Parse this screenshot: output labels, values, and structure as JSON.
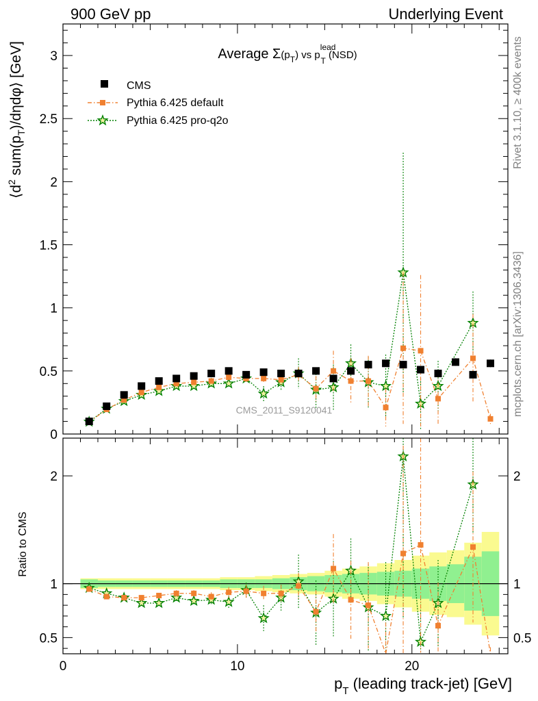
{
  "header": {
    "left": "900 GeV pp",
    "right": "Underlying Event"
  },
  "title": {
    "prefix": "Average ",
    "sigma": "Σ",
    "p": "(p",
    "psub": "T",
    "close": ")",
    "vs": " vs p",
    "lead_sup": "lead",
    "lead_sub": "T",
    "suffix": " (NSD)"
  },
  "side": {
    "rivet": "Rivet 3.1.10, ≥ 400k events",
    "mcplots": "mcplots.cern.ch [arXiv:1306.3436]"
  },
  "watermark": "CMS_2011_S9120041",
  "ylabel_main": {
    "a": "⟨d",
    "sup": "2",
    "b": " sum(p",
    "sub": "T",
    "c": ")/dηdφ⟩ [GeV]"
  },
  "ylabel_ratio": "Ratio to CMS",
  "xlabel": {
    "p": "p",
    "sub": "T",
    "rest": " (leading track-jet) [GeV]"
  },
  "colors": {
    "cms": "#000000",
    "pythia_default": "#f08030",
    "pythia_proq2o": "#008000",
    "band_inner": "#90f090",
    "band_outer": "#fafa90"
  },
  "chart_data": [
    {
      "type": "scatter",
      "panel": "main",
      "xlim": [
        0,
        25.5
      ],
      "ylim": [
        0,
        3.25
      ],
      "yticks": [
        0,
        0.5,
        1,
        1.5,
        2,
        2.5,
        3
      ],
      "yticklabels": [
        "0",
        "0.5",
        "1",
        "1.5",
        "2",
        "2.5",
        "3"
      ],
      "legend_position": "top-left",
      "series": [
        {
          "name": "CMS",
          "style": "square",
          "x": [
            1.5,
            2.5,
            3.5,
            4.5,
            5.5,
            6.5,
            7.5,
            8.5,
            9.5,
            10.5,
            11.5,
            12.5,
            13.5,
            14.5,
            15.5,
            16.5,
            17.5,
            18.5,
            19.5,
            20.5,
            21.5,
            22.5,
            23.5,
            24.5
          ],
          "y": [
            0.1,
            0.22,
            0.31,
            0.38,
            0.42,
            0.44,
            0.46,
            0.48,
            0.5,
            0.47,
            0.49,
            0.48,
            0.48,
            0.5,
            0.44,
            0.5,
            0.55,
            0.56,
            0.55,
            0.51,
            0.48,
            0.57,
            0.47,
            0.56
          ],
          "err": [
            0.004,
            0.006,
            0.008,
            0.01,
            0.01,
            0.01,
            0.01,
            0.01,
            0.012,
            0.012,
            0.012,
            0.013,
            0.014,
            0.015,
            0.016,
            0.02,
            0.025,
            0.025,
            0.03,
            0.03,
            0.03,
            0.03,
            0.03,
            0.03
          ]
        },
        {
          "name": "Pythia 6.425 default",
          "style": "dashdot-orange-square",
          "x": [
            1.5,
            2.5,
            3.5,
            4.5,
            5.5,
            6.5,
            7.5,
            8.5,
            9.5,
            10.5,
            11.5,
            12.5,
            13.5,
            14.5,
            15.5,
            16.5,
            17.5,
            18.5,
            19.5,
            20.5,
            21.5,
            23.5,
            24.5
          ],
          "y": [
            0.095,
            0.195,
            0.27,
            0.33,
            0.37,
            0.4,
            0.41,
            0.42,
            0.45,
            0.44,
            0.44,
            0.43,
            0.47,
            0.36,
            0.5,
            0.42,
            0.42,
            0.21,
            0.68,
            0.66,
            0.28,
            0.6,
            0.12
          ],
          "err": [
            0.004,
            0.006,
            0.008,
            0.01,
            0.012,
            0.015,
            0.02,
            0.02,
            0.025,
            0.03,
            0.03,
            0.04,
            0.06,
            0.1,
            0.16,
            0.18,
            0.2,
            0.15,
            0.6,
            0.6,
            0.2,
            0.35,
            0.04
          ]
        },
        {
          "name": "Pythia 6.425 pro-q2o",
          "style": "dotted-green-star",
          "x": [
            1.5,
            2.5,
            3.5,
            4.5,
            5.5,
            6.5,
            7.5,
            8.5,
            9.5,
            10.5,
            11.5,
            12.5,
            13.5,
            14.5,
            15.5,
            16.5,
            17.5,
            18.5,
            19.5,
            20.5,
            21.5,
            23.5
          ],
          "y": [
            0.097,
            0.2,
            0.26,
            0.31,
            0.34,
            0.38,
            0.38,
            0.4,
            0.4,
            0.44,
            0.32,
            0.41,
            0.48,
            0.35,
            0.37,
            0.56,
            0.41,
            0.38,
            1.28,
            0.24,
            0.38,
            0.88
          ],
          "err": [
            0.004,
            0.006,
            0.008,
            0.01,
            0.012,
            0.015,
            0.02,
            0.025,
            0.03,
            0.03,
            0.06,
            0.06,
            0.12,
            0.15,
            0.18,
            0.15,
            0.2,
            0.25,
            0.95,
            0.2,
            0.2,
            0.25
          ]
        }
      ]
    },
    {
      "type": "scatter",
      "panel": "ratio",
      "xlim": [
        0,
        25.5
      ],
      "ylim": [
        0.35,
        2.35
      ],
      "yticks": [
        0.5,
        1,
        2
      ],
      "yticklabels": [
        "0.5",
        "1",
        "2"
      ],
      "xticks": [
        0,
        10,
        20
      ],
      "xticklabels": [
        "0",
        "10",
        "20"
      ],
      "band_edges": [
        1,
        2,
        3,
        4,
        5,
        6,
        7,
        8,
        9,
        10,
        11,
        12,
        13,
        14,
        15,
        16,
        17,
        18,
        19,
        20,
        21,
        22,
        23,
        24,
        25
      ],
      "band_inner": [
        0.04,
        0.03,
        0.03,
        0.03,
        0.03,
        0.03,
        0.03,
        0.03,
        0.04,
        0.04,
        0.04,
        0.05,
        0.06,
        0.07,
        0.08,
        0.09,
        0.1,
        0.11,
        0.12,
        0.14,
        0.16,
        0.18,
        0.25,
        0.3
      ],
      "band_outer": [
        0.05,
        0.05,
        0.05,
        0.05,
        0.05,
        0.05,
        0.05,
        0.05,
        0.06,
        0.06,
        0.07,
        0.08,
        0.09,
        0.1,
        0.12,
        0.14,
        0.16,
        0.19,
        0.22,
        0.26,
        0.29,
        0.31,
        0.38,
        0.48
      ],
      "series": [
        {
          "name": "Pythia 6.425 default",
          "x": [
            1.5,
            2.5,
            3.5,
            4.5,
            5.5,
            6.5,
            7.5,
            8.5,
            9.5,
            10.5,
            11.5,
            12.5,
            13.5,
            14.5,
            15.5,
            16.5,
            17.5,
            18.5,
            19.5,
            20.5,
            21.5,
            23.5,
            24.5
          ],
          "y": [
            0.95,
            0.88,
            0.87,
            0.87,
            0.89,
            0.91,
            0.91,
            0.88,
            0.92,
            0.93,
            0.91,
            0.91,
            0.98,
            0.74,
            1.14,
            0.85,
            0.8,
            0.34,
            1.28,
            1.36,
            0.61,
            1.34,
            0.31
          ],
          "err": [
            0.02,
            0.02,
            0.02,
            0.02,
            0.02,
            0.03,
            0.03,
            0.04,
            0.05,
            0.06,
            0.07,
            0.08,
            0.12,
            0.2,
            0.32,
            0.36,
            0.4,
            0.3,
            1.0,
            1.0,
            0.4,
            0.7,
            0.1
          ]
        },
        {
          "name": "Pythia 6.425 pro-q2o",
          "x": [
            1.5,
            2.5,
            3.5,
            4.5,
            5.5,
            6.5,
            7.5,
            8.5,
            9.5,
            10.5,
            11.5,
            12.5,
            13.5,
            14.5,
            15.5,
            16.5,
            17.5,
            18.5,
            19.5,
            20.5,
            21.5,
            23.5
          ],
          "y": [
            0.96,
            0.91,
            0.87,
            0.82,
            0.82,
            0.87,
            0.84,
            0.85,
            0.83,
            0.94,
            0.68,
            0.87,
            1.02,
            0.73,
            0.86,
            1.12,
            0.78,
            0.7,
            2.18,
            0.46,
            0.82,
            1.92
          ],
          "err": [
            0.02,
            0.02,
            0.02,
            0.02,
            0.02,
            0.03,
            0.03,
            0.05,
            0.06,
            0.07,
            0.12,
            0.12,
            0.25,
            0.3,
            0.35,
            0.3,
            0.4,
            0.5,
            1.5,
            0.4,
            0.4,
            0.45
          ]
        }
      ]
    }
  ]
}
